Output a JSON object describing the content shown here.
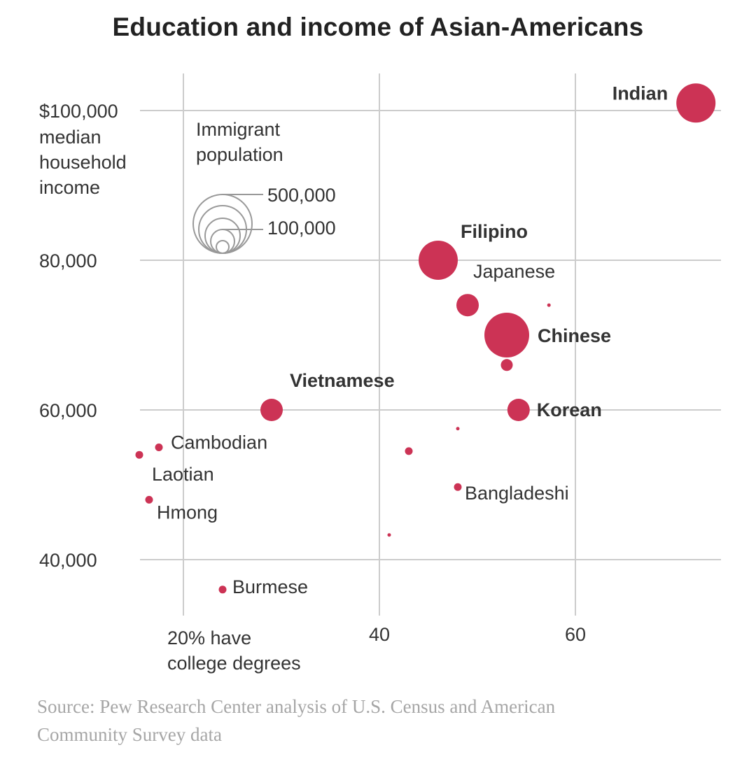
{
  "title": "Education and income of Asian-Americans",
  "source": {
    "line1": "Source: Pew Research Center analysis of U.S. Census and American",
    "line2": "Community Survey data"
  },
  "colors": {
    "bubble": "#cc3355",
    "grid": "#cccccc",
    "text": "#333333",
    "legend_circle": "#999999",
    "source": "#a6a6a6"
  },
  "chart_data": {
    "type": "scatter",
    "title": "Education and income of Asian-Americans",
    "x_axis": {
      "quantity": "percent with college degrees",
      "ticks": [
        20,
        40,
        60
      ],
      "tick_labels": [
        "20% have college degrees",
        "40",
        "60"
      ],
      "range": [
        14,
        72
      ]
    },
    "y_axis": {
      "quantity": "median household income ($)",
      "ticks": [
        40000,
        60000,
        80000,
        100000
      ],
      "tick_labels": [
        "40,000",
        "60,000",
        "80,000",
        "$100,000"
      ],
      "label_lines": [
        "median",
        "household",
        "income"
      ],
      "range": [
        32000,
        106000
      ]
    },
    "grid": true,
    "size_legend": {
      "title_lines": [
        "Immigrant",
        "population"
      ],
      "labels": [
        "500,000",
        "100,000"
      ]
    },
    "points": [
      {
        "label": "Indian",
        "bold": true,
        "x": 72.3,
        "y": 101000,
        "size": "large"
      },
      {
        "label": "Filipino",
        "bold": true,
        "x": 46.0,
        "y": 80000,
        "size": "large"
      },
      {
        "label": "Japanese",
        "bold": false,
        "x": 49.0,
        "y": 74000,
        "size": "medium"
      },
      {
        "label": "",
        "bold": false,
        "x": 57.3,
        "y": 74000,
        "size": "tiny"
      },
      {
        "label": "Chinese",
        "bold": true,
        "x": 53.0,
        "y": 70000,
        "size": "largest"
      },
      {
        "label": "",
        "bold": false,
        "x": 53.0,
        "y": 66000,
        "size": "small"
      },
      {
        "label": "Vietnamese",
        "bold": true,
        "x": 29.0,
        "y": 60000,
        "size": "medium"
      },
      {
        "label": "Korean",
        "bold": true,
        "x": 54.2,
        "y": 60000,
        "size": "medium"
      },
      {
        "label": "",
        "bold": false,
        "x": 48.0,
        "y": 57500,
        "size": "tiny"
      },
      {
        "label": "Cambodian",
        "bold": false,
        "x": 17.5,
        "y": 55000,
        "size": "very small"
      },
      {
        "label": "",
        "bold": false,
        "x": 43.0,
        "y": 54500,
        "size": "very small"
      },
      {
        "label": "Laotian",
        "bold": false,
        "x": 15.5,
        "y": 54000,
        "size": "very small"
      },
      {
        "label": "Bangladeshi",
        "bold": false,
        "x": 48.0,
        "y": 49700,
        "size": "very small"
      },
      {
        "label": "Hmong",
        "bold": false,
        "x": 16.5,
        "y": 48000,
        "size": "very small"
      },
      {
        "label": "",
        "bold": false,
        "x": 41.0,
        "y": 43300,
        "size": "tiny"
      },
      {
        "label": "Burmese",
        "bold": false,
        "x": 24.0,
        "y": 36000,
        "size": "very small"
      }
    ]
  }
}
